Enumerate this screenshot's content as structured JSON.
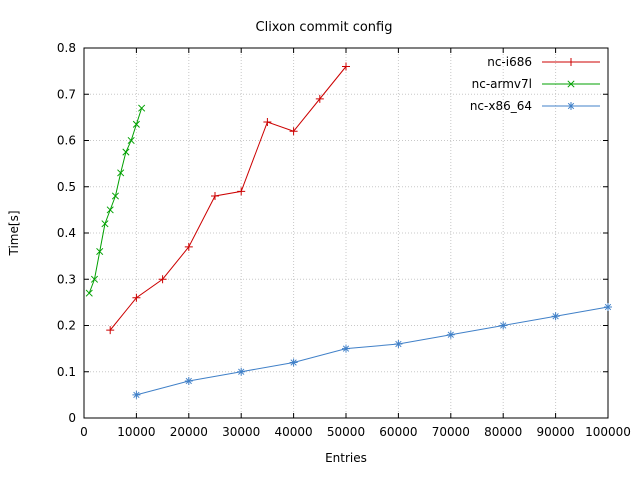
{
  "chart_data": {
    "type": "line",
    "title": "Clixon commit config",
    "xlabel": "Entries",
    "ylabel": "Time[s]",
    "xlim": [
      0,
      100000
    ],
    "ylim": [
      0,
      0.8
    ],
    "xticks": [
      0,
      10000,
      20000,
      30000,
      40000,
      50000,
      60000,
      70000,
      80000,
      90000,
      100000
    ],
    "yticks": [
      0,
      0.1,
      0.2,
      0.3,
      0.4,
      0.5,
      0.6,
      0.7,
      0.8
    ],
    "grid": true,
    "legend_position": "top-right-inside",
    "background": "#ffffff",
    "grid_color": "#c8c8c8",
    "series": [
      {
        "name": "nc-i686",
        "color": "#cc0000",
        "marker": "plus",
        "x": [
          5000,
          10000,
          15000,
          20000,
          25000,
          30000,
          35000,
          40000,
          45000,
          50000
        ],
        "y": [
          0.19,
          0.26,
          0.3,
          0.37,
          0.48,
          0.49,
          0.64,
          0.62,
          0.69,
          0.76
        ]
      },
      {
        "name": "nc-armv7l",
        "color": "#00a000",
        "marker": "x",
        "x": [
          1000,
          2000,
          3000,
          4000,
          5000,
          6000,
          7000,
          8000,
          9000,
          10000,
          11000
        ],
        "y": [
          0.27,
          0.3,
          0.36,
          0.42,
          0.45,
          0.48,
          0.53,
          0.575,
          0.6,
          0.635,
          0.67
        ]
      },
      {
        "name": "nc-x86_64",
        "color": "#4080c8",
        "marker": "star",
        "x": [
          10000,
          20000,
          30000,
          40000,
          50000,
          60000,
          70000,
          80000,
          90000,
          100000
        ],
        "y": [
          0.05,
          0.08,
          0.1,
          0.12,
          0.15,
          0.16,
          0.18,
          0.2,
          0.22,
          0.24
        ]
      }
    ]
  }
}
